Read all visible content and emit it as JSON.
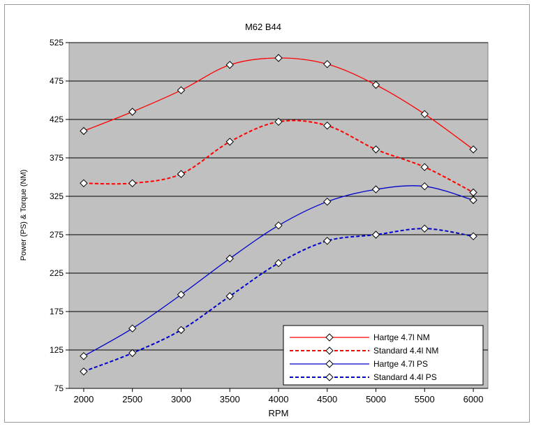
{
  "chart_data": {
    "type": "line",
    "title": "M62 B44",
    "xlabel": "RPM",
    "ylabel": "Power (PS) & Torque (NM)",
    "x": [
      2000,
      2500,
      3000,
      3500,
      4000,
      4500,
      5000,
      5500,
      6000
    ],
    "xlim": [
      1850,
      6150
    ],
    "ylim": [
      75,
      525
    ],
    "yticks": [
      75,
      125,
      175,
      225,
      275,
      325,
      375,
      425,
      475,
      525
    ],
    "xticks": [
      2000,
      2500,
      3000,
      3500,
      4000,
      4500,
      5000,
      5500,
      6000
    ],
    "grid": "horizontal",
    "plot_background": "#c0c0c0",
    "legend_position": "bottom-right",
    "series": [
      {
        "name": "Hartge 4.7l NM",
        "color": "#ff0000",
        "dash": "solid",
        "values": [
          410,
          435,
          463,
          496,
          505,
          497,
          470,
          432,
          386
        ]
      },
      {
        "name": "Standard 4.4l NM",
        "color": "#ff0000",
        "dash": "dashed",
        "values": [
          342,
          342,
          354,
          396,
          422,
          417,
          386,
          363,
          330
        ]
      },
      {
        "name": "Hartge 4.7l PS",
        "color": "#0000cc",
        "dash": "solid",
        "values": [
          117,
          153,
          197,
          244,
          287,
          318,
          334,
          338,
          320
        ]
      },
      {
        "name": "Standard 4.4l PS",
        "color": "#0000cc",
        "dash": "dashed",
        "values": [
          97,
          121,
          151,
          195,
          238,
          267,
          275,
          283,
          273
        ]
      }
    ]
  }
}
